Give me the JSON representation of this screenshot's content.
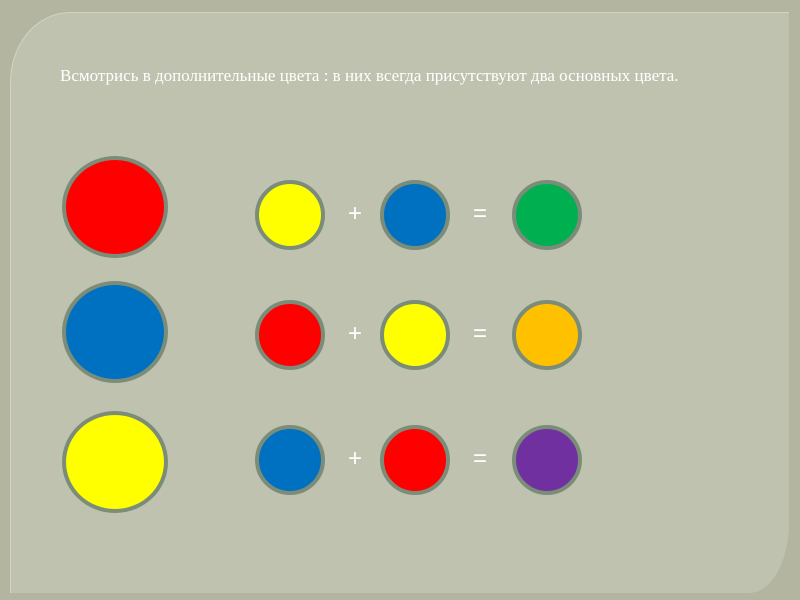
{
  "slide": {
    "text": "Всмотрись в дополнительные цвета : в них всегда присутствуют два основных цвета."
  },
  "primary_colors": [
    {
      "name": "red",
      "color": "#ff0000"
    },
    {
      "name": "blue",
      "color": "#0070c0"
    },
    {
      "name": "yellow",
      "color": "#ffff00"
    }
  ],
  "equations": [
    {
      "a": "#ffff00",
      "b": "#0070c0",
      "result": "#00b050",
      "plus": "+",
      "equals": "="
    },
    {
      "a": "#ff0000",
      "b": "#ffff00",
      "result": "#ffc000",
      "plus": "+",
      "equals": "="
    },
    {
      "a": "#0070c0",
      "b": "#ff0000",
      "result": "#7030a0",
      "plus": "+",
      "equals": "="
    }
  ],
  "colors": {
    "background": "#b3b5a1",
    "panel": "#c0c2b0",
    "circle_border": "#7b8d79",
    "text": "#ffffff"
  }
}
